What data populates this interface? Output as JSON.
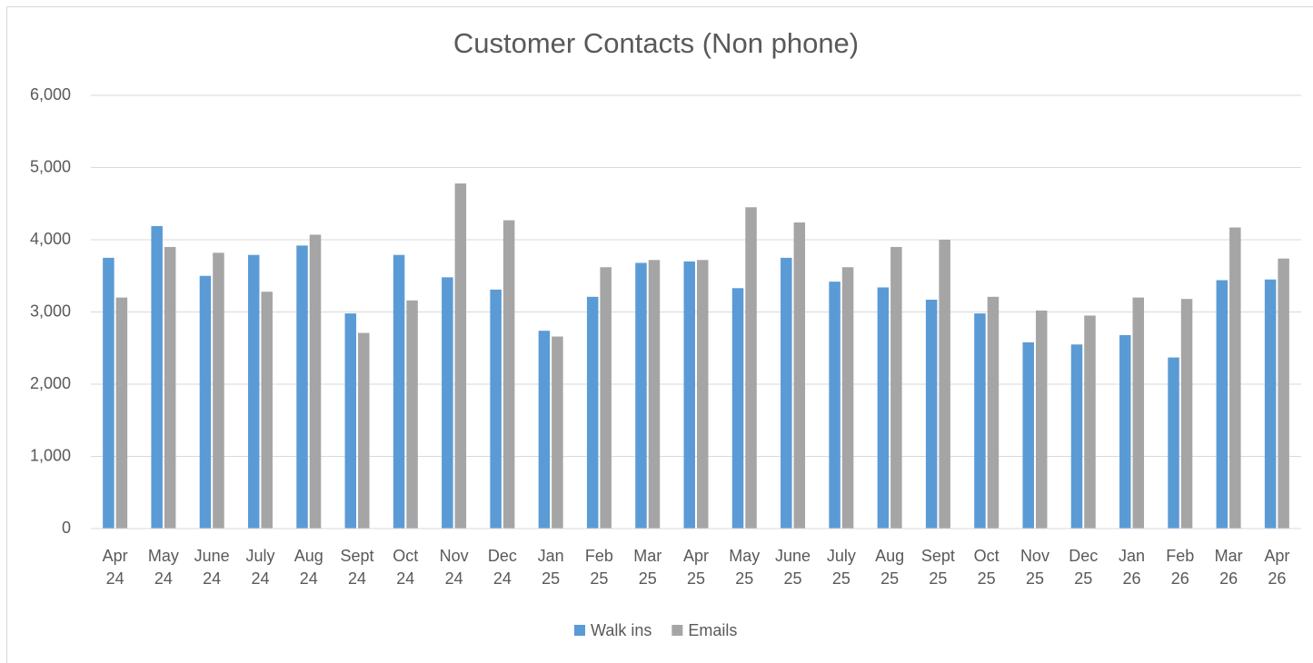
{
  "chart_data": {
    "type": "bar",
    "title": "Customer Contacts (Non phone)",
    "categories": [
      "Apr 24",
      "May 24",
      "June 24",
      "July 24",
      "Aug 24",
      "Sept 24",
      "Oct 24",
      "Nov 24",
      "Dec 24",
      "Jan 25",
      "Feb 25",
      "Mar 25",
      "Apr 25",
      "May 25",
      "June 25",
      "July 25",
      "Aug 25",
      "Sept 25",
      "Oct 25",
      "Nov 25",
      "Dec 25",
      "Jan 26",
      "Feb 26",
      "Mar 26",
      "Apr 26"
    ],
    "series": [
      {
        "name": "Walk ins",
        "color": "#5b9bd5",
        "values": [
          3750,
          4190,
          3500,
          3790,
          3920,
          2980,
          3790,
          3480,
          3310,
          2740,
          3210,
          3680,
          3700,
          3330,
          3750,
          3420,
          3340,
          3170,
          2980,
          2580,
          2550,
          2680,
          2370,
          3440,
          3450
        ]
      },
      {
        "name": "Emails",
        "color": "#a5a5a5",
        "values": [
          3200,
          3900,
          3820,
          3280,
          4070,
          2710,
          3160,
          4780,
          4270,
          2660,
          3620,
          3720,
          3720,
          4450,
          4240,
          3620,
          3900,
          4000,
          3210,
          3020,
          2950,
          3200,
          3180,
          4170,
          3740
        ]
      }
    ],
    "ylim": [
      0,
      6000
    ],
    "yticks": [
      0,
      {
        "value": 1000,
        "label": "1,000"
      },
      {
        "value": 2000,
        "label": "2,000"
      },
      {
        "value": 3000,
        "label": "3,000"
      },
      {
        "value": 4000,
        "label": "4,000"
      },
      {
        "value": 5000,
        "label": "5,000"
      },
      {
        "value": 6000,
        "label": "6,000"
      }
    ],
    "grid": true,
    "legend": "bottom"
  }
}
